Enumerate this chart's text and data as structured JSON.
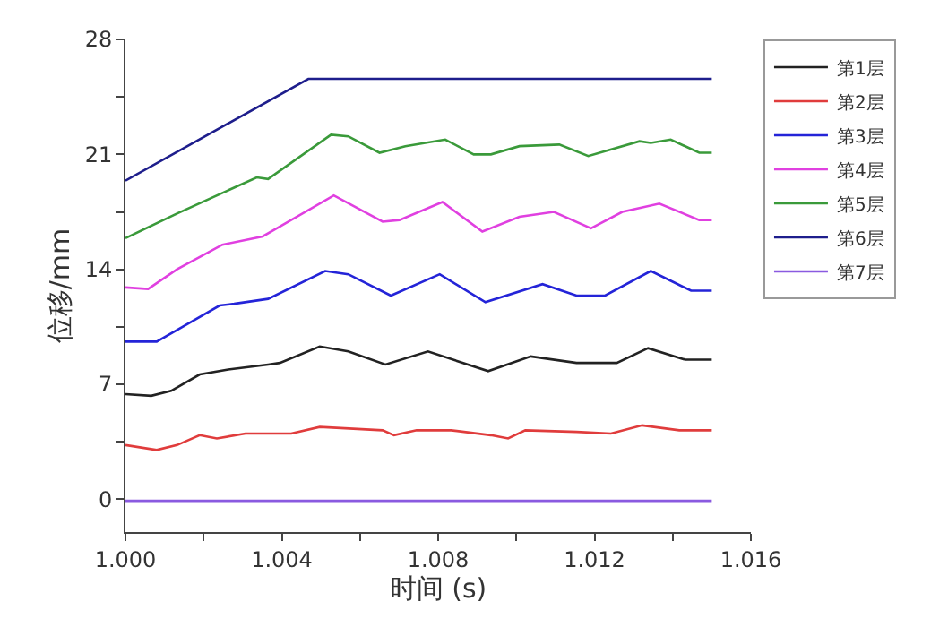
{
  "chart_data": {
    "type": "line",
    "xlabel": "时间 (s)",
    "ylabel": "位移/mm",
    "xlim": [
      1.0,
      1.016
    ],
    "ylim": [
      -2,
      28
    ],
    "xticks": [
      {
        "value": 1.0,
        "label": "1.000"
      },
      {
        "value": 1.002,
        "label": null
      },
      {
        "value": 1.004,
        "label": "1.004"
      },
      {
        "value": 1.006,
        "label": null
      },
      {
        "value": 1.008,
        "label": "1.008"
      },
      {
        "value": 1.01,
        "label": null
      },
      {
        "value": 1.012,
        "label": "1.012"
      },
      {
        "value": 1.014,
        "label": null
      },
      {
        "value": 1.016,
        "label": "1.016"
      }
    ],
    "yticks": [
      0,
      {
        "value": 3.5,
        "label": null
      },
      7,
      {
        "value": 10.5,
        "label": null
      },
      14,
      {
        "value": 17.5,
        "label": null
      },
      21,
      {
        "value": 24.5,
        "label": null
      },
      28
    ],
    "legend": "top right",
    "series": [
      {
        "name": "第1层",
        "color": "#222222",
        "x": [
          1.0,
          1.00066,
          1.00117,
          1.0019,
          1.00263,
          1.00365,
          1.00395,
          1.00497,
          1.0057,
          1.00665,
          1.00774,
          1.00928,
          1.01037,
          1.01154,
          1.01257,
          1.01337,
          1.01432,
          1.015
        ],
        "values": [
          6.4,
          6.3,
          6.6,
          7.6,
          7.9,
          8.2,
          8.3,
          9.3,
          9.0,
          8.2,
          9.0,
          7.8,
          8.7,
          8.3,
          8.3,
          9.2,
          8.5,
          8.5
        ]
      },
      {
        "name": "第2层",
        "color": "#e03c3c",
        "x": [
          1.0,
          1.0008,
          1.00132,
          1.0019,
          1.00234,
          1.00307,
          1.00424,
          1.00497,
          1.00658,
          1.00687,
          1.00745,
          1.00833,
          1.00935,
          1.00979,
          1.01023,
          1.01154,
          1.01242,
          1.01322,
          1.01417,
          1.015
        ],
        "values": [
          3.3,
          3.0,
          3.3,
          3.9,
          3.7,
          4.0,
          4.0,
          4.4,
          4.2,
          3.9,
          4.2,
          4.2,
          3.9,
          3.7,
          4.2,
          4.1,
          4.0,
          4.5,
          4.2,
          4.2
        ]
      },
      {
        "name": "第3层",
        "color": "#2424d8",
        "x": [
          1.0,
          1.0008,
          1.00146,
          1.00241,
          1.00278,
          1.00365,
          1.00511,
          1.0057,
          1.00679,
          1.00804,
          1.00921,
          1.01067,
          1.01154,
          1.01227,
          1.01344,
          1.01447,
          1.015
        ],
        "values": [
          9.6,
          9.6,
          10.5,
          11.8,
          11.9,
          12.2,
          13.9,
          13.7,
          12.4,
          13.7,
          12.0,
          13.1,
          12.4,
          12.4,
          13.9,
          12.7,
          12.7
        ]
      },
      {
        "name": "第4层",
        "color": "#e040e0",
        "x": [
          1.0,
          1.00058,
          1.00132,
          1.00248,
          1.00351,
          1.00533,
          1.00658,
          1.00701,
          1.00811,
          1.00913,
          1.01008,
          1.01096,
          1.01191,
          1.01271,
          1.01366,
          1.01468,
          1.015
        ],
        "values": [
          12.9,
          12.8,
          14.0,
          15.5,
          16.0,
          18.5,
          16.9,
          17.0,
          18.1,
          16.3,
          17.2,
          17.5,
          16.5,
          17.5,
          18.0,
          17.0,
          17.0
        ]
      },
      {
        "name": "第5层",
        "color": "#3a9a3a",
        "x": [
          1.0,
          1.00132,
          1.00336,
          1.00365,
          1.00526,
          1.0057,
          1.0065,
          1.00716,
          1.00818,
          1.00891,
          1.00935,
          1.01008,
          1.0111,
          1.01184,
          1.01315,
          1.01344,
          1.01395,
          1.01468,
          1.015
        ],
        "values": [
          15.9,
          17.4,
          19.6,
          19.5,
          22.2,
          22.1,
          21.1,
          21.5,
          21.9,
          21.0,
          21.0,
          21.5,
          21.6,
          20.9,
          21.8,
          21.7,
          21.9,
          21.1,
          21.1
        ]
      },
      {
        "name": "第6层",
        "color": "#1e1e8c",
        "x": [
          1.0,
          1.00468,
          1.015
        ],
        "values": [
          19.4,
          25.6,
          25.6
        ]
      },
      {
        "name": "第7层",
        "color": "#8a5ae0",
        "x": [
          1.0,
          1.015
        ],
        "values": [
          -0.1,
          -0.1
        ]
      }
    ]
  }
}
